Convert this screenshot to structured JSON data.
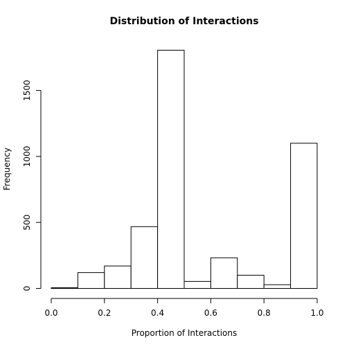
{
  "chart_data": {
    "type": "bar",
    "title": "Distribution of Interactions",
    "xlabel": "Proportion of Interactions",
    "ylabel": "Frequency",
    "bins": [
      {
        "x0": 0.0,
        "x1": 0.1,
        "count": 5
      },
      {
        "x0": 0.1,
        "x1": 0.2,
        "count": 120
      },
      {
        "x0": 0.2,
        "x1": 0.3,
        "count": 170
      },
      {
        "x0": 0.3,
        "x1": 0.4,
        "count": 468
      },
      {
        "x0": 0.4,
        "x1": 0.5,
        "count": 1805
      },
      {
        "x0": 0.5,
        "x1": 0.6,
        "count": 53
      },
      {
        "x0": 0.6,
        "x1": 0.7,
        "count": 232
      },
      {
        "x0": 0.7,
        "x1": 0.8,
        "count": 100
      },
      {
        "x0": 0.8,
        "x1": 0.9,
        "count": 28
      },
      {
        "x0": 0.9,
        "x1": 1.0,
        "count": 1100
      }
    ],
    "xlim": [
      0,
      1
    ],
    "ylim": [
      0,
      1805
    ],
    "x_ticks": [
      {
        "value": 0.0,
        "label": "0.0"
      },
      {
        "value": 0.2,
        "label": "0.2"
      },
      {
        "value": 0.4,
        "label": "0.4"
      },
      {
        "value": 0.6,
        "label": "0.6"
      },
      {
        "value": 0.8,
        "label": "0.8"
      },
      {
        "value": 1.0,
        "label": "1.0"
      }
    ],
    "y_ticks": [
      {
        "value": 0,
        "label": "0"
      },
      {
        "value": 500,
        "label": "500"
      },
      {
        "value": 1000,
        "label": "1000"
      },
      {
        "value": 1500,
        "label": "1500"
      }
    ],
    "grid": false,
    "legend": "none"
  }
}
